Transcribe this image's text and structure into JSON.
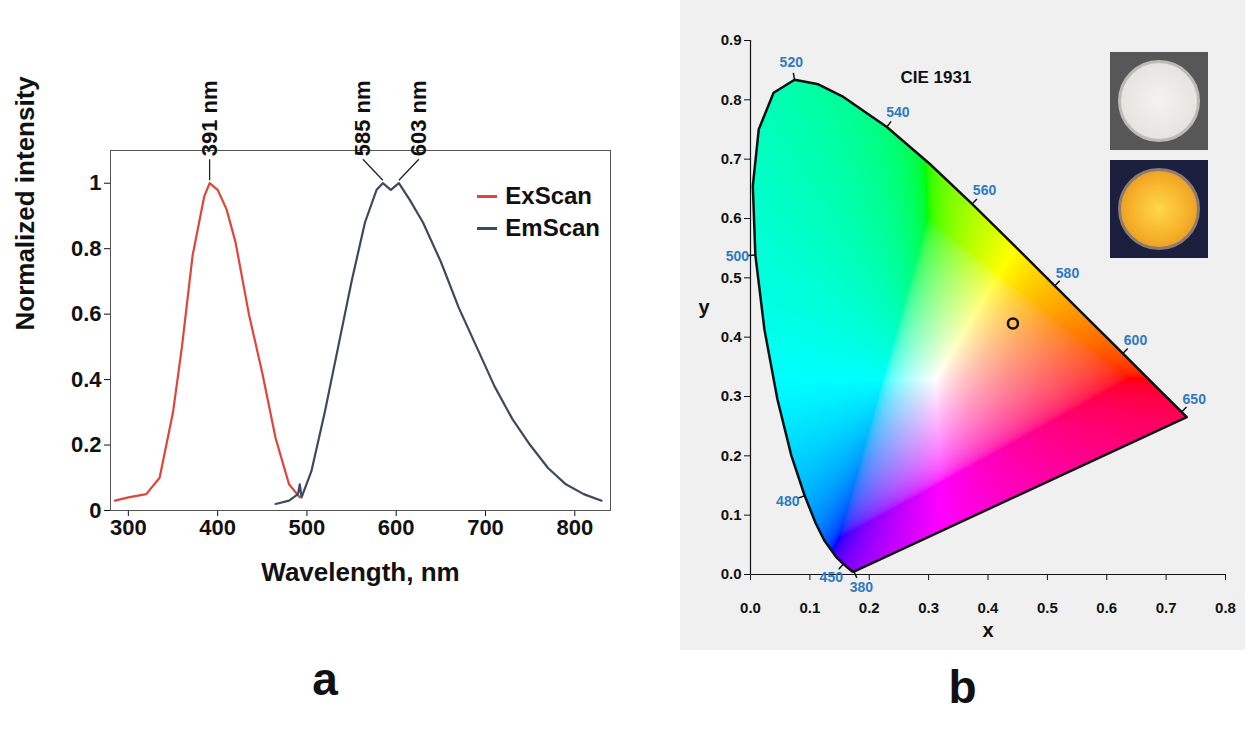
{
  "chart_data": [
    {
      "panel": "a",
      "type": "line",
      "xlabel": "Wavelength, nm",
      "ylabel": "Normalized intensity",
      "xlim": [
        280,
        840
      ],
      "ylim": [
        0,
        1.1
      ],
      "xticks": [
        300,
        400,
        500,
        600,
        700,
        800
      ],
      "yticks": [
        0,
        0.2,
        0.4,
        0.6,
        0.8,
        1
      ],
      "legend": "top-right",
      "series": [
        {
          "name": "ExScan",
          "color": "#e0453a",
          "x": [
            285,
            300,
            320,
            335,
            350,
            360,
            372,
            385,
            391,
            400,
            410,
            420,
            435,
            450,
            465,
            480,
            492
          ],
          "values": [
            0.03,
            0.04,
            0.05,
            0.1,
            0.3,
            0.5,
            0.78,
            0.96,
            1.0,
            0.98,
            0.92,
            0.82,
            0.6,
            0.42,
            0.22,
            0.08,
            0.04
          ]
        },
        {
          "name": "EmScan",
          "color": "#3b4a5e",
          "x": [
            465,
            480,
            490,
            492,
            494,
            505,
            520,
            535,
            550,
            565,
            578,
            585,
            594,
            603,
            615,
            630,
            650,
            670,
            690,
            710,
            730,
            750,
            770,
            790,
            810,
            830
          ],
          "values": [
            0.02,
            0.03,
            0.05,
            0.08,
            0.04,
            0.12,
            0.3,
            0.5,
            0.7,
            0.88,
            0.98,
            1.0,
            0.98,
            1.0,
            0.95,
            0.88,
            0.76,
            0.62,
            0.5,
            0.38,
            0.28,
            0.2,
            0.13,
            0.08,
            0.05,
            0.03
          ]
        }
      ],
      "annotations": [
        {
          "text": "391 nm",
          "x": 391,
          "y": 1
        },
        {
          "text": "585 nm",
          "x": 585,
          "y": 1
        },
        {
          "text": "603 nm",
          "x": 603,
          "y": 1
        }
      ]
    },
    {
      "panel": "b",
      "type": "chromaticity",
      "title": "CIE 1931",
      "xlabel": "x",
      "ylabel": "y",
      "xlim": [
        0,
        0.8
      ],
      "ylim": [
        0,
        0.9
      ],
      "xticks": [
        {
          "value": 0,
          "label": "0.0"
        },
        {
          "value": 0.1,
          "label": "0.1"
        },
        {
          "value": 0.2,
          "label": "0.2"
        },
        {
          "value": 0.3,
          "label": "0.3"
        },
        {
          "value": 0.4,
          "label": "0.4"
        },
        {
          "value": 0.5,
          "label": "0.5"
        },
        {
          "value": 0.6,
          "label": "0.6"
        },
        {
          "value": 0.7,
          "label": "0.7"
        },
        {
          "value": 0.8,
          "label": "0.8"
        }
      ],
      "yticks": [
        {
          "value": 0,
          "label": "0.0"
        },
        {
          "value": 0.1,
          "label": "0.1"
        },
        {
          "value": 0.2,
          "label": "0.2"
        },
        {
          "value": 0.3,
          "label": "0.3"
        },
        {
          "value": 0.4,
          "label": "0.4"
        },
        {
          "value": 0.5,
          "label": "0.5"
        },
        {
          "value": 0.6,
          "label": "0.6"
        },
        {
          "value": 0.7,
          "label": "0.7"
        },
        {
          "value": 0.8,
          "label": "0.8"
        },
        {
          "value": 0.9,
          "label": "0.9"
        }
      ],
      "locus": {
        "wavelengths": [
          380,
          400,
          420,
          440,
          450,
          460,
          470,
          475,
          480,
          485,
          490,
          495,
          500,
          505,
          510,
          515,
          520,
          525,
          530,
          540,
          550,
          560,
          570,
          580,
          590,
          600,
          620,
          650,
          700
        ],
        "x": [
          0.1741,
          0.1733,
          0.1714,
          0.1644,
          0.1566,
          0.144,
          0.1241,
          0.1096,
          0.0913,
          0.0687,
          0.0454,
          0.0235,
          0.0082,
          0.0039,
          0.0139,
          0.0389,
          0.0743,
          0.1142,
          0.1547,
          0.2296,
          0.3016,
          0.3731,
          0.4441,
          0.5125,
          0.5752,
          0.627,
          0.6915,
          0.726,
          0.7347
        ],
        "y": [
          0.005,
          0.0048,
          0.0051,
          0.0109,
          0.0177,
          0.0297,
          0.0578,
          0.0868,
          0.1327,
          0.2007,
          0.295,
          0.4127,
          0.5384,
          0.6548,
          0.7502,
          0.812,
          0.8338,
          0.8262,
          0.8059,
          0.7543,
          0.6923,
          0.6245,
          0.5547,
          0.4866,
          0.4242,
          0.3725,
          0.3083,
          0.274,
          0.2653
        ]
      },
      "locus_labels": [
        520,
        540,
        560,
        580,
        600,
        650,
        500,
        480,
        450,
        380
      ],
      "points": {
        "x": [
          0.442
        ],
        "y": [
          0.423
        ]
      },
      "marker": "circle"
    }
  ]
}
